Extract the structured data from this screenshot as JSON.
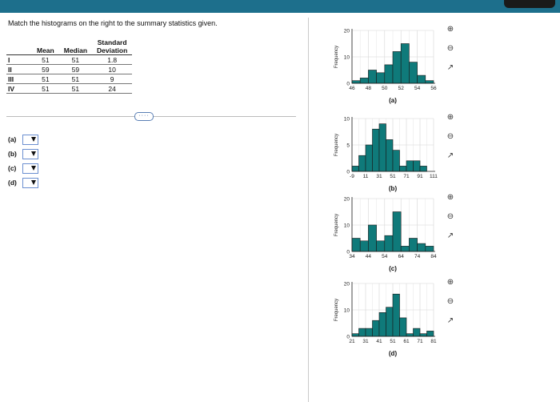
{
  "instructions": "Match the histograms on the right to the summary statistics given.",
  "table": {
    "headers": {
      "mean": "Mean",
      "median": "Median",
      "sd_line1": "Standard",
      "sd_line2": "Deviation"
    },
    "rows": [
      {
        "label": "I",
        "mean": "51",
        "median": "51",
        "sd": "1.8"
      },
      {
        "label": "II",
        "mean": "59",
        "median": "59",
        "sd": "10"
      },
      {
        "label": "III",
        "mean": "51",
        "median": "51",
        "sd": "9"
      },
      {
        "label": "IV",
        "mean": "51",
        "median": "51",
        "sd": "24"
      }
    ]
  },
  "more_button": "····",
  "answers": [
    {
      "label": "(a)",
      "value": ""
    },
    {
      "label": "(b)",
      "value": ""
    },
    {
      "label": "(c)",
      "value": ""
    },
    {
      "label": "(d)",
      "value": ""
    }
  ],
  "colors": {
    "bar": "#0f7a7a",
    "header": "#1d6f8c"
  },
  "icons": {
    "zoom_in": "zoom-in-icon",
    "zoom_out": "zoom-out-icon",
    "open_new": "open-new-window-icon"
  },
  "chart_data": [
    {
      "type": "bar",
      "caption": "(a)",
      "ylabel": "Frequency",
      "yticks": [
        "0",
        "10",
        "20"
      ],
      "ylim": [
        0,
        20
      ],
      "xticks": [
        "46",
        "48",
        "50",
        "52",
        "54",
        "56"
      ],
      "xrange": [
        46,
        56
      ],
      "bin_width": 1,
      "values": [
        1,
        2,
        5,
        4,
        7,
        12,
        15,
        8,
        3,
        1
      ],
      "grid": true
    },
    {
      "type": "bar",
      "caption": "(b)",
      "ylabel": "Frequency",
      "yticks": [
        "0",
        "5",
        "10"
      ],
      "ylim": [
        0,
        10
      ],
      "xticks": [
        "-9",
        "11",
        "31",
        "51",
        "71",
        "91",
        "111"
      ],
      "xrange": [
        -9,
        111
      ],
      "bin_width": 10,
      "values": [
        1,
        3,
        5,
        8,
        9,
        6,
        4,
        1,
        2,
        2,
        1
      ],
      "grid": true
    },
    {
      "type": "bar",
      "caption": "(c)",
      "ylabel": "Frequency",
      "yticks": [
        "0",
        "10",
        "20"
      ],
      "ylim": [
        0,
        20
      ],
      "xticks": [
        "34",
        "44",
        "54",
        "64",
        "74",
        "84"
      ],
      "xrange": [
        34,
        84
      ],
      "bin_width": 5,
      "values": [
        5,
        4,
        10,
        4,
        6,
        15,
        2,
        5,
        3,
        2
      ],
      "grid": true
    },
    {
      "type": "bar",
      "caption": "(d)",
      "ylabel": "Frequency",
      "yticks": [
        "0",
        "10",
        "20"
      ],
      "ylim": [
        0,
        20
      ],
      "xticks": [
        "21",
        "31",
        "41",
        "51",
        "61",
        "71",
        "81"
      ],
      "xrange": [
        21,
        81
      ],
      "bin_width": 5,
      "values": [
        1,
        3,
        3,
        6,
        9,
        11,
        16,
        7,
        1,
        3,
        1,
        2
      ],
      "grid": true
    }
  ]
}
